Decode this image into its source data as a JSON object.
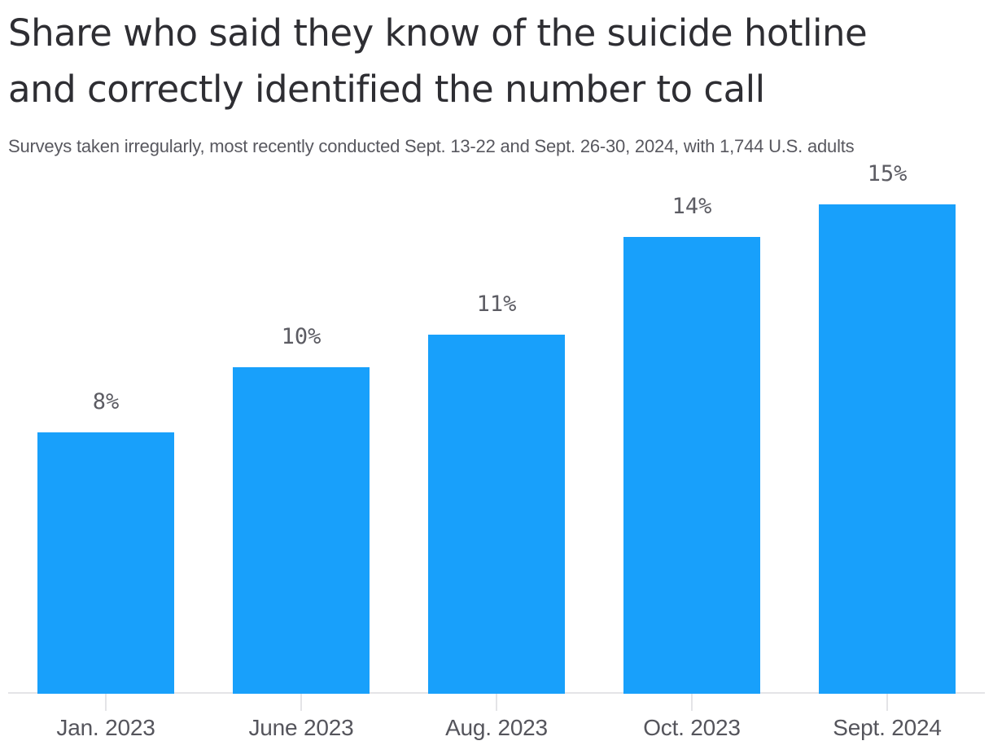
{
  "header": {
    "title_line1": "Share who said they know of the suicide hotline",
    "title_line2": "and correctly identified the number to call",
    "subtitle": "Surveys taken irregularly, most recently conducted Sept. 13-22 and Sept. 26-30, 2024, with 1,744 U.S. adults"
  },
  "colors": {
    "bar": "#18a0fb",
    "title": "#2e2e33",
    "subtitle": "#58585f",
    "value_label": "#5c5c63",
    "axis_label": "#55555c",
    "axis_line": "#e4e4e7"
  },
  "chart_data": {
    "type": "bar",
    "title": "Share who said they know of the suicide hotline and correctly identified the number to call",
    "subtitle": "Surveys taken irregularly, most recently conducted Sept. 13-22 and Sept. 26-30, 2024, with 1,744 U.S. adults",
    "categories": [
      "Jan. 2023",
      "June 2023",
      "Aug. 2023",
      "Oct. 2023",
      "Sept. 2024"
    ],
    "values": [
      8,
      10,
      11,
      14,
      15
    ],
    "value_labels": [
      "8%",
      "10%",
      "11%",
      "14%",
      "15%"
    ],
    "unit": "percent",
    "xlabel": "",
    "ylabel": "",
    "ylim": [
      0,
      16
    ],
    "grid": false,
    "legend": false,
    "y_axis_visible": false,
    "data_labels_position": "above bars",
    "bar_color": "#18a0fb"
  }
}
